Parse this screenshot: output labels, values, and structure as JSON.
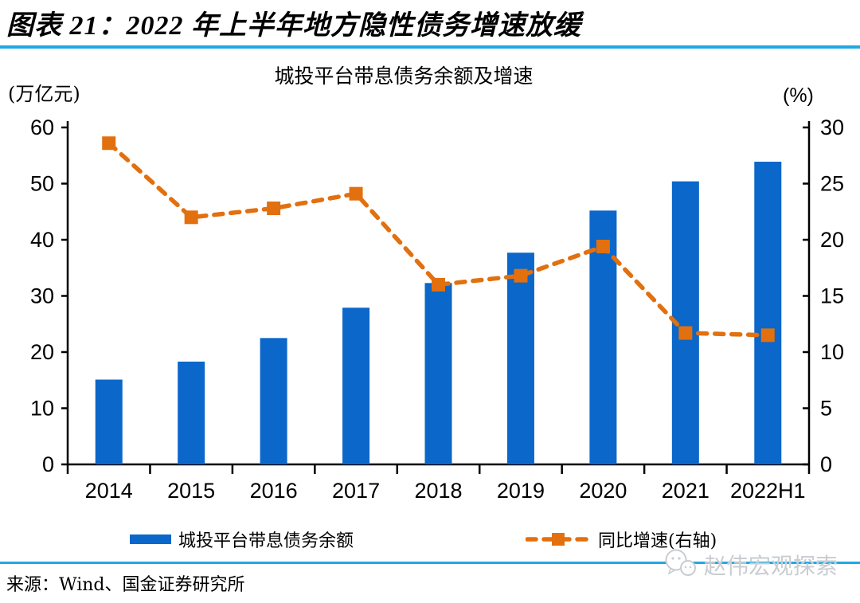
{
  "header": {
    "title": "图表 21：2022 年上半年地方隐性债务增速放缓"
  },
  "chart": {
    "title": "城投平台带息债务余额及增速",
    "left_unit": "(万亿元)",
    "right_unit": "(%)"
  },
  "colors": {
    "bar": "#0B67C9",
    "line": "#E2700F",
    "rule": "#1FA9E4",
    "axis": "#000000",
    "watermark": "#c9cdd1"
  },
  "chart_data": {
    "type": "bar",
    "title": "城投平台带息债务余额及增速",
    "categories": [
      "2014",
      "2015",
      "2016",
      "2017",
      "2018",
      "2019",
      "2020",
      "2021",
      "2022H1"
    ],
    "series": [
      {
        "name": "城投平台带息债务余额",
        "type": "bar",
        "axis": "left",
        "color": "#0B67C9",
        "values": [
          15.1,
          18.3,
          22.5,
          27.9,
          32.3,
          37.7,
          45.2,
          50.4,
          53.9
        ]
      },
      {
        "name": "同比增速(右轴)",
        "type": "line",
        "axis": "right",
        "color": "#E2700F",
        "dashed": true,
        "marker": "square",
        "values": [
          28.6,
          22.0,
          22.8,
          24.1,
          16.0,
          16.8,
          19.4,
          11.7,
          11.5
        ]
      }
    ],
    "left_axis": {
      "unit": "(万亿元)",
      "min": 0,
      "max": 60,
      "step": 10
    },
    "right_axis": {
      "unit": "(%)",
      "min": 0,
      "max": 30,
      "step": 5
    },
    "grid": false,
    "legend_position": "bottom"
  },
  "footer": {
    "source": "来源：Wind、国金证券研究所",
    "watermark": "赵伟宏观探索"
  }
}
